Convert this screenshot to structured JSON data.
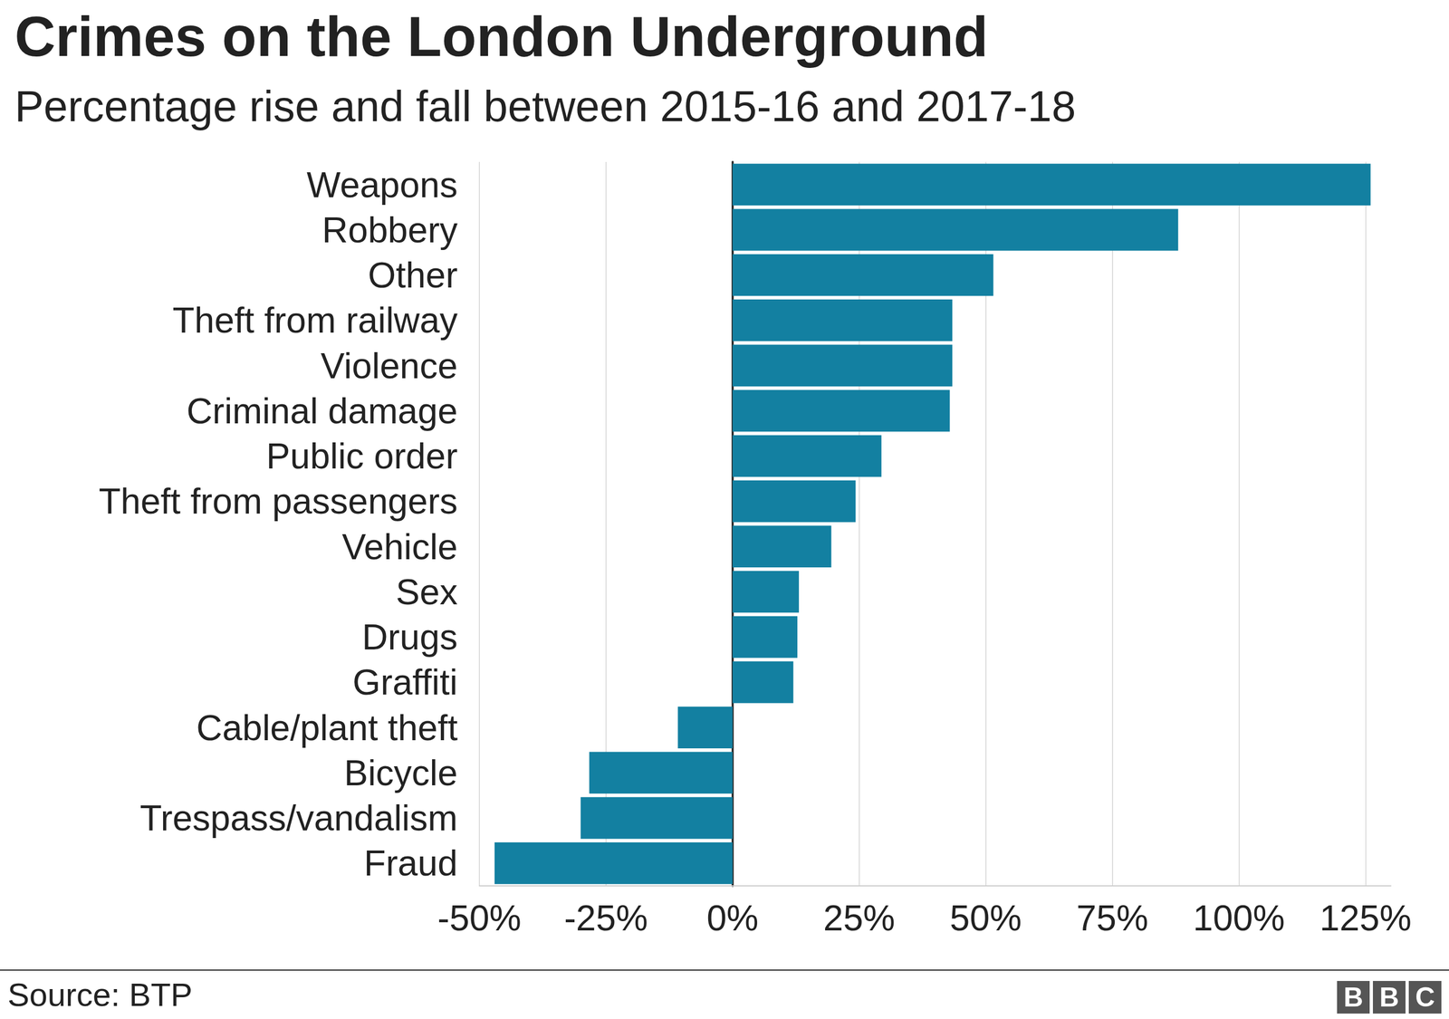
{
  "chart_data": {
    "type": "bar",
    "title": "Crimes on the London Underground",
    "subtitle": "Percentage rise and fall between 2015-16 and 2017-18",
    "source": "Source: BTP",
    "logo": "BBC",
    "orientation": "horizontal",
    "categories": [
      "Weapons",
      "Robbery",
      "Other",
      "Theft from railway",
      "Violence",
      "Criminal damage",
      "Public order",
      "Theft from passengers",
      "Vehicle",
      "Sex",
      "Drugs",
      "Graffiti",
      "Cable/plant theft",
      "Bicycle",
      "Trespass/vandalism",
      "Fraud"
    ],
    "values": [
      126,
      88,
      51.5,
      43.4,
      43.4,
      42.9,
      29.4,
      24.3,
      19.5,
      13.1,
      12.8,
      12,
      -10.8,
      -28.3,
      -30,
      -47
    ],
    "color": "#1380a1",
    "xlim": [
      -50,
      130
    ],
    "xticks": [
      {
        "value": -50,
        "label": "-50%"
      },
      {
        "value": -25,
        "label": "-25%"
      },
      {
        "value": 0,
        "label": "0%"
      },
      {
        "value": 25,
        "label": "25%"
      },
      {
        "value": 50,
        "label": "50%"
      },
      {
        "value": 75,
        "label": "75%"
      },
      {
        "value": 100,
        "label": "100%"
      },
      {
        "value": 125,
        "label": "125%"
      }
    ],
    "grid": true
  }
}
